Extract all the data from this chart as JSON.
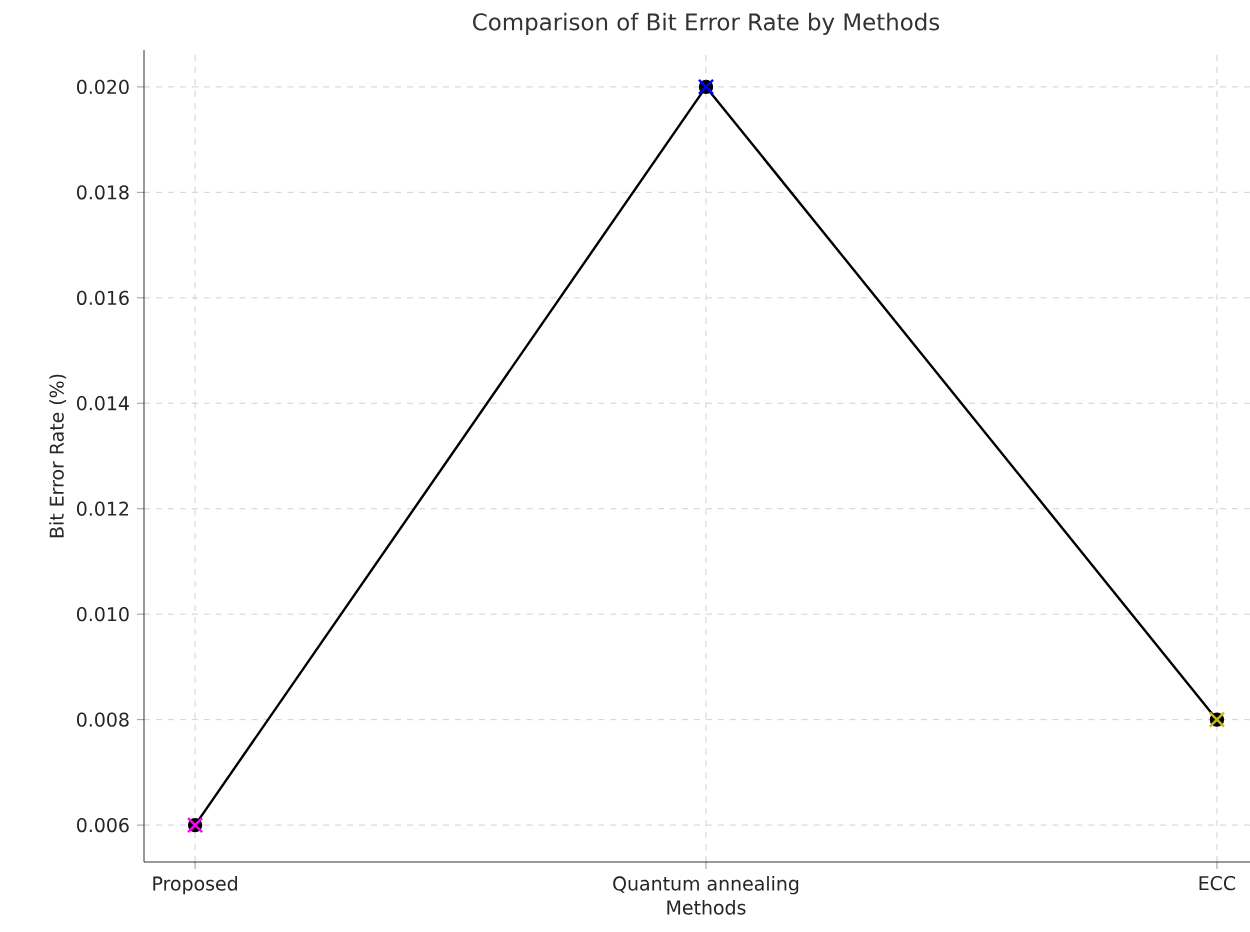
{
  "chart_data": {
    "type": "line",
    "title": "Comparison of Bit Error Rate by Methods",
    "xlabel": "Methods",
    "ylabel": "Bit Error Rate (%)",
    "categories": [
      "Proposed",
      "Quantum annealing",
      "ECC"
    ],
    "series": [
      {
        "type": "scatter",
        "marker": "cross",
        "colors": [
          "#ff00ff",
          "#0000ff",
          "#bcbd22"
        ],
        "values": [
          0.006,
          0.02,
          0.008
        ]
      },
      {
        "marker": "circle",
        "color": "#000000",
        "values": [
          0.006,
          0.02,
          0.008
        ]
      }
    ],
    "ylim": [
      0.0053,
      0.0207
    ],
    "yticks": [
      0.006,
      0.008,
      {
        "value": 0.01,
        "label": "0.010"
      },
      0.012,
      0.014,
      0.016,
      0.018,
      {
        "value": 0.02,
        "label": "0.020"
      }
    ],
    "grid": true
  }
}
